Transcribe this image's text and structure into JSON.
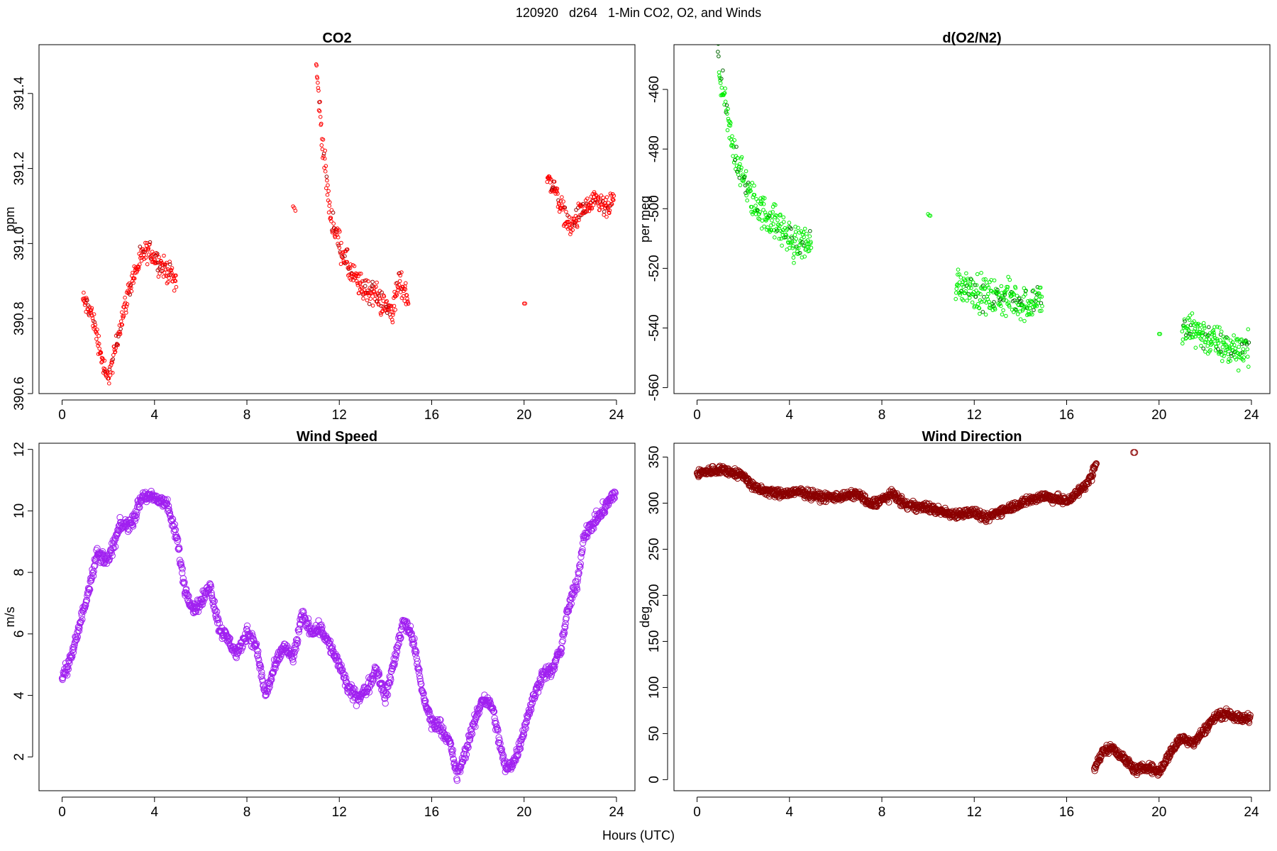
{
  "page": {
    "suptitle": "120920   d264   1-Min CO2, O2, and Winds",
    "xlabel": "Hours (UTC)"
  },
  "chart_data": [
    {
      "id": "co2",
      "type": "scatter",
      "title": "CO2",
      "ylabel": "ppm",
      "xlim": [
        -1,
        24.8
      ],
      "ylim": [
        390.6,
        391.53
      ],
      "xticks": [
        0,
        4,
        8,
        12,
        16,
        20,
        24
      ],
      "yticks": [
        390.6,
        390.8,
        391.0,
        391.2,
        391.4
      ],
      "ytick_labels": [
        "390.6",
        "390.8",
        "391.0",
        "391.2",
        "391.4"
      ],
      "color": "#ff0000",
      "color_dark": "#990000",
      "marker_radius": 2.3,
      "segments": [
        {
          "x0": 0.9,
          "x1": 4.95,
          "step": 0.0167,
          "anchors": [
            [
              0.9,
              390.85
            ],
            [
              1.3,
              390.81
            ],
            [
              1.6,
              390.73
            ],
            [
              1.9,
              390.64
            ],
            [
              2.15,
              390.67
            ],
            [
              2.5,
              390.78
            ],
            [
              3.0,
              390.9
            ],
            [
              3.5,
              390.97
            ],
            [
              3.8,
              390.98
            ],
            [
              4.3,
              390.94
            ],
            [
              4.7,
              390.92
            ],
            [
              4.95,
              390.9
            ]
          ],
          "noise": 0.025
        },
        {
          "x0": 10.0,
          "x1": 10.1,
          "step": 0.05,
          "anchors": [
            [
              10.0,
              391.1
            ],
            [
              10.1,
              391.09
            ]
          ],
          "noise": 0.005
        },
        {
          "x0": 11.0,
          "x1": 15.0,
          "step": 0.0167,
          "anchors": [
            [
              11.0,
              391.47
            ],
            [
              11.3,
              391.25
            ],
            [
              11.6,
              391.08
            ],
            [
              12.0,
              391.0
            ],
            [
              12.5,
              390.92
            ],
            [
              13.0,
              390.88
            ],
            [
              13.5,
              390.87
            ],
            [
              14.0,
              390.83
            ],
            [
              14.3,
              390.82
            ],
            [
              14.6,
              390.9
            ],
            [
              15.0,
              390.85
            ]
          ],
          "noise": 0.03
        },
        {
          "x0": 20.0,
          "x1": 20.05,
          "step": 0.05,
          "anchors": [
            [
              20.0,
              390.84
            ],
            [
              20.05,
              390.84
            ]
          ],
          "noise": 0.0
        },
        {
          "x0": 21.0,
          "x1": 23.9,
          "step": 0.0167,
          "anchors": [
            [
              21.0,
              391.17
            ],
            [
              21.3,
              391.15
            ],
            [
              21.6,
              391.1
            ],
            [
              22.0,
              391.04
            ],
            [
              22.4,
              391.08
            ],
            [
              22.8,
              391.1
            ],
            [
              23.2,
              391.11
            ],
            [
              23.6,
              391.09
            ],
            [
              23.9,
              391.12
            ]
          ],
          "noise": 0.025
        }
      ]
    },
    {
      "id": "o2",
      "type": "scatter",
      "title": "d(O2/N2)",
      "ylabel": "per meg",
      "xlim": [
        -1,
        24.8
      ],
      "ylim": [
        -562,
        -445
      ],
      "xticks": [
        0,
        4,
        8,
        12,
        16,
        20,
        24
      ],
      "yticks": [
        -560,
        -540,
        -520,
        -500,
        -480,
        -460
      ],
      "ytick_labels": [
        "-560",
        "-540",
        "-520",
        "-500",
        "-480",
        "-460"
      ],
      "color": "#00ee00",
      "color_dark": "#006600",
      "marker_radius": 2.3,
      "segments": [
        {
          "x0": 0.9,
          "x1": 4.95,
          "step": 0.0167,
          "anchors": [
            [
              0.9,
              -450
            ],
            [
              1.2,
              -465
            ],
            [
              1.5,
              -478
            ],
            [
              1.9,
              -488
            ],
            [
              2.3,
              -496
            ],
            [
              2.8,
              -501
            ],
            [
              3.3,
              -504
            ],
            [
              3.8,
              -508
            ],
            [
              4.2,
              -512
            ],
            [
              4.6,
              -511
            ],
            [
              4.95,
              -512
            ]
          ],
          "noise": 5
        },
        {
          "x0": 10.0,
          "x1": 10.1,
          "step": 0.05,
          "anchors": [
            [
              10.0,
              -505
            ],
            [
              10.1,
              -506
            ]
          ],
          "noise": 6
        },
        {
          "x0": 11.2,
          "x1": 14.95,
          "step": 0.0167,
          "anchors": [
            [
              11.2,
              -525
            ],
            [
              11.8,
              -526
            ],
            [
              12.4,
              -529
            ],
            [
              13.0,
              -530
            ],
            [
              13.6,
              -530
            ],
            [
              14.2,
              -532
            ],
            [
              14.95,
              -530
            ]
          ],
          "noise": 5
        },
        {
          "x0": 20.0,
          "x1": 20.05,
          "step": 0.05,
          "anchors": [
            [
              20.0,
              -542
            ],
            [
              20.05,
              -542
            ]
          ],
          "noise": 0
        },
        {
          "x0": 21.0,
          "x1": 23.9,
          "step": 0.0167,
          "anchors": [
            [
              21.0,
              -542
            ],
            [
              21.5,
              -540
            ],
            [
              22.0,
              -543
            ],
            [
              22.5,
              -545
            ],
            [
              23.0,
              -547
            ],
            [
              23.5,
              -547
            ],
            [
              23.9,
              -546
            ]
          ],
          "noise": 5
        }
      ]
    },
    {
      "id": "ws",
      "type": "scatter",
      "title": "Wind Speed",
      "ylabel": "m/s",
      "xlim": [
        -1,
        24.8
      ],
      "ylim": [
        0.9,
        12.2
      ],
      "xticks": [
        0,
        4,
        8,
        12,
        16,
        20,
        24
      ],
      "yticks": [
        2,
        4,
        6,
        8,
        10,
        12
      ],
      "ytick_labels": [
        "2",
        "4",
        "6",
        "8",
        "10",
        "12"
      ],
      "color": "#a020f0",
      "color_dark": "#a020f0",
      "marker_radius": 4.2,
      "segments": [
        {
          "x0": 0.0,
          "x1": 23.95,
          "step": 0.0167,
          "anchors": [
            [
              0.0,
              4.5
            ],
            [
              0.5,
              5.5
            ],
            [
              1.0,
              7.0
            ],
            [
              1.5,
              8.6
            ],
            [
              2.0,
              8.4
            ],
            [
              2.5,
              9.5
            ],
            [
              3.0,
              9.6
            ],
            [
              3.5,
              10.5
            ],
            [
              4.0,
              10.4
            ],
            [
              4.5,
              10.3
            ],
            [
              5.0,
              9.0
            ],
            [
              5.3,
              7.5
            ],
            [
              5.7,
              6.8
            ],
            [
              6.0,
              7.0
            ],
            [
              6.4,
              7.6
            ],
            [
              6.8,
              6.2
            ],
            [
              7.2,
              5.8
            ],
            [
              7.6,
              5.3
            ],
            [
              8.0,
              6.1
            ],
            [
              8.4,
              5.6
            ],
            [
              8.8,
              4.0
            ],
            [
              9.2,
              4.9
            ],
            [
              9.6,
              5.6
            ],
            [
              10.0,
              5.2
            ],
            [
              10.4,
              6.6
            ],
            [
              10.8,
              6.1
            ],
            [
              11.2,
              6.2
            ],
            [
              11.6,
              5.6
            ],
            [
              12.0,
              5.0
            ],
            [
              12.4,
              4.2
            ],
            [
              12.8,
              3.9
            ],
            [
              13.2,
              4.2
            ],
            [
              13.6,
              4.9
            ],
            [
              14.0,
              3.9
            ],
            [
              14.4,
              5.2
            ],
            [
              14.8,
              6.5
            ],
            [
              15.2,
              5.8
            ],
            [
              15.6,
              4.1
            ],
            [
              16.0,
              3.1
            ],
            [
              16.4,
              3.0
            ],
            [
              16.8,
              2.4
            ],
            [
              17.1,
              1.4
            ],
            [
              17.4,
              2.0
            ],
            [
              17.8,
              3.0
            ],
            [
              18.2,
              3.9
            ],
            [
              18.6,
              3.7
            ],
            [
              18.9,
              2.6
            ],
            [
              19.2,
              1.6
            ],
            [
              19.6,
              1.9
            ],
            [
              20.0,
              2.9
            ],
            [
              20.4,
              3.9
            ],
            [
              20.8,
              4.7
            ],
            [
              21.2,
              4.8
            ],
            [
              21.6,
              5.5
            ],
            [
              21.9,
              6.8
            ],
            [
              22.3,
              7.7
            ],
            [
              22.6,
              9.2
            ],
            [
              23.0,
              9.6
            ],
            [
              23.4,
              10.0
            ],
            [
              23.95,
              10.6
            ]
          ],
          "noise": 0.18
        }
      ]
    },
    {
      "id": "wd",
      "type": "scatter",
      "title": "Wind Direction",
      "ylabel": "deg",
      "xlim": [
        -1,
        24.8
      ],
      "ylim": [
        -12,
        365
      ],
      "xticks": [
        0,
        4,
        8,
        12,
        16,
        20,
        24
      ],
      "yticks": [
        0,
        50,
        100,
        150,
        200,
        250,
        300,
        350
      ],
      "ytick_labels": [
        "0",
        "50",
        "100",
        "150",
        "200",
        "250",
        "300",
        "350"
      ],
      "color": "#8b0000",
      "color_dark": "#8b0000",
      "marker_radius": 4.2,
      "segments": [
        {
          "x0": 0.0,
          "x1": 17.3,
          "step": 0.0167,
          "anchors": [
            [
              0.0,
              332
            ],
            [
              1.0,
              337
            ],
            [
              2.0,
              330
            ],
            [
              2.5,
              316
            ],
            [
              3.5,
              310
            ],
            [
              4.5,
              312
            ],
            [
              5.5,
              306
            ],
            [
              6.5,
              308
            ],
            [
              7.0,
              310
            ],
            [
              7.5,
              298
            ],
            [
              8.0,
              304
            ],
            [
              8.5,
              310
            ],
            [
              9.0,
              298
            ],
            [
              10.0,
              295
            ],
            [
              11.0,
              288
            ],
            [
              12.0,
              290
            ],
            [
              12.5,
              283
            ],
            [
              13.0,
              290
            ],
            [
              14.0,
              300
            ],
            [
              15.0,
              308
            ],
            [
              16.0,
              302
            ],
            [
              16.5,
              312
            ],
            [
              17.0,
              325
            ],
            [
              17.3,
              345
            ]
          ],
          "noise": 4
        },
        {
          "x0": 17.2,
          "x1": 23.95,
          "step": 0.0167,
          "anchors": [
            [
              17.2,
              12
            ],
            [
              17.6,
              32
            ],
            [
              18.0,
              35
            ],
            [
              18.5,
              22
            ],
            [
              19.0,
              10
            ],
            [
              19.5,
              14
            ],
            [
              20.0,
              8
            ],
            [
              20.5,
              30
            ],
            [
              21.0,
              46
            ],
            [
              21.5,
              40
            ],
            [
              22.0,
              55
            ],
            [
              22.5,
              70
            ],
            [
              23.0,
              72
            ],
            [
              23.5,
              66
            ],
            [
              23.95,
              67
            ]
          ],
          "noise": 4
        },
        {
          "x0": 18.9,
          "x1": 18.95,
          "step": 0.05,
          "anchors": [
            [
              18.9,
              355
            ],
            [
              18.95,
              355
            ]
          ],
          "noise": 0
        }
      ]
    }
  ]
}
